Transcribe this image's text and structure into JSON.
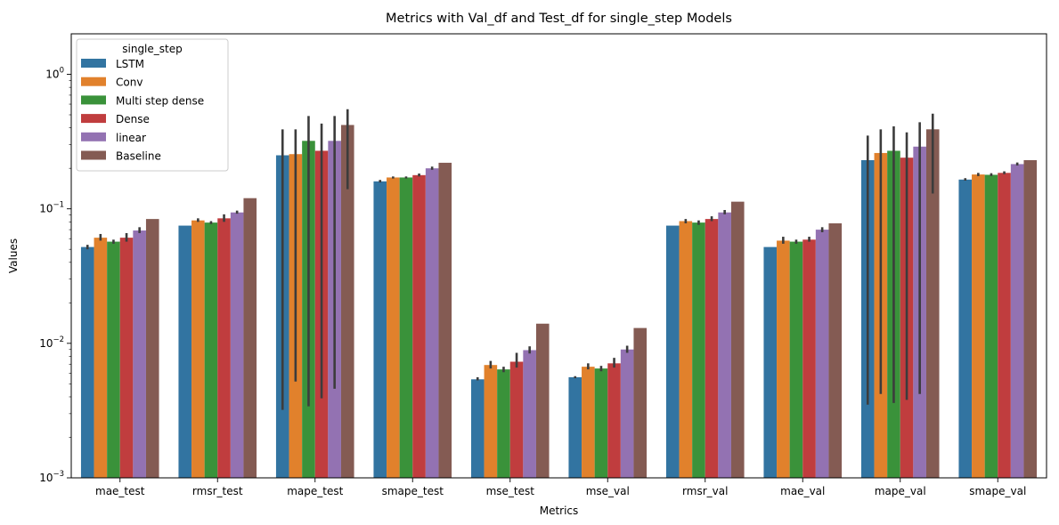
{
  "chart_data": {
    "type": "bar",
    "title": "Metrics with Val_df and Test_df for single_step Models",
    "xlabel": "Metrics",
    "ylabel": "Values",
    "yscale": "log",
    "ylim": [
      0.001,
      2
    ],
    "yticks": [
      {
        "value": 0.001,
        "base": "10",
        "exp": "−3"
      },
      {
        "value": 0.01,
        "base": "10",
        "exp": "−2"
      },
      {
        "value": 0.1,
        "base": "10",
        "exp": "−1"
      },
      {
        "value": 1,
        "base": "10",
        "exp": "0"
      }
    ],
    "grid": false,
    "legend_title": "single_step",
    "legend_position": "top-left",
    "categories": [
      "mae_test",
      "rmsr_test",
      "mape_test",
      "smape_test",
      "mse_test",
      "mse_val",
      "rmsr_val",
      "mae_val",
      "mape_val",
      "smape_val"
    ],
    "series": [
      {
        "name": "LSTM",
        "color": "#3274a1",
        "values": [
          0.052,
          0.075,
          0.25,
          0.16,
          0.0054,
          0.0056,
          0.075,
          0.052,
          0.23,
          0.165
        ],
        "err_low": [
          0.05,
          null,
          0.0032,
          0.157,
          0.0053,
          0.0055,
          null,
          null,
          0.0035,
          0.162
        ],
        "err_high": [
          0.054,
          null,
          0.39,
          0.164,
          0.0056,
          0.0057,
          null,
          null,
          0.35,
          0.169
        ]
      },
      {
        "name": "Conv",
        "color": "#e1812c",
        "values": [
          0.061,
          0.082,
          0.255,
          0.171,
          0.0069,
          0.0067,
          0.081,
          0.058,
          0.26,
          0.18
        ],
        "err_low": [
          0.058,
          0.08,
          0.0052,
          0.168,
          0.0065,
          0.0064,
          0.078,
          0.055,
          0.0042,
          0.175
        ],
        "err_high": [
          0.065,
          0.085,
          0.39,
          0.174,
          0.0074,
          0.0071,
          0.084,
          0.062,
          0.39,
          0.185
        ]
      },
      {
        "name": "Multi step dense",
        "color": "#3a923a",
        "values": [
          0.057,
          0.079,
          0.32,
          0.171,
          0.0064,
          0.0065,
          0.079,
          0.057,
          0.27,
          0.179
        ],
        "err_low": [
          0.055,
          0.077,
          0.0034,
          0.168,
          0.0061,
          0.0062,
          0.076,
          0.055,
          0.0036,
          0.175
        ],
        "err_high": [
          0.059,
          0.081,
          0.49,
          0.174,
          0.0067,
          0.0068,
          0.082,
          0.059,
          0.41,
          0.184
        ]
      },
      {
        "name": "Dense",
        "color": "#c03d3e",
        "values": [
          0.061,
          0.085,
          0.27,
          0.178,
          0.0073,
          0.0071,
          0.084,
          0.059,
          0.24,
          0.185
        ],
        "err_low": [
          0.057,
          0.08,
          0.0039,
          0.174,
          0.0066,
          0.0066,
          0.081,
          0.057,
          0.0038,
          0.181
        ],
        "err_high": [
          0.066,
          0.091,
          0.43,
          0.183,
          0.0085,
          0.0078,
          0.088,
          0.062,
          0.37,
          0.19
        ]
      },
      {
        "name": "linear",
        "color": "#9372b2",
        "values": [
          0.069,
          0.094,
          0.32,
          0.2,
          0.0089,
          0.009,
          0.094,
          0.07,
          0.29,
          0.215
        ],
        "err_low": [
          0.066,
          0.092,
          0.0046,
          0.195,
          0.0084,
          0.0085,
          0.091,
          0.067,
          0.0042,
          0.21
        ],
        "err_high": [
          0.073,
          0.097,
          0.49,
          0.206,
          0.0095,
          0.0096,
          0.098,
          0.073,
          0.44,
          0.221
        ]
      },
      {
        "name": "Baseline",
        "color": "#845b53",
        "values": [
          0.084,
          0.12,
          0.42,
          0.22,
          0.014,
          0.013,
          0.113,
          0.078,
          0.39,
          0.23
        ],
        "err_low": [
          null,
          null,
          0.14,
          null,
          null,
          null,
          null,
          null,
          0.13,
          null
        ],
        "err_high": [
          null,
          null,
          0.55,
          null,
          null,
          null,
          null,
          null,
          0.51,
          null
        ]
      }
    ]
  }
}
